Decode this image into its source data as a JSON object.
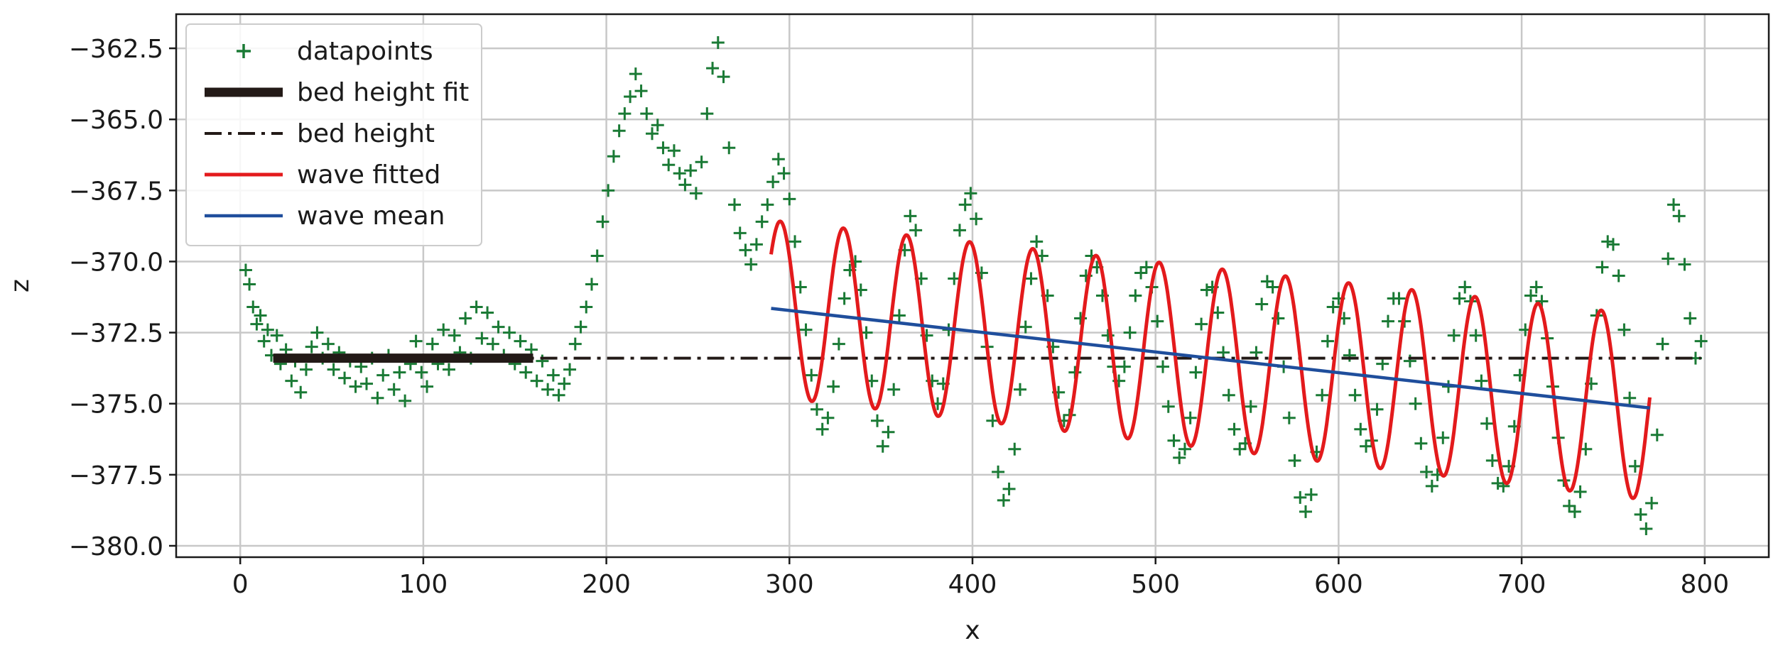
{
  "chart_data": {
    "type": "line",
    "title": "",
    "xlabel": "x",
    "ylabel": "z",
    "xlim": [
      -35,
      835
    ],
    "ylim": [
      -380.4,
      -361.3
    ],
    "xticks": [
      0,
      100,
      200,
      300,
      400,
      500,
      600,
      700,
      800
    ],
    "xtick_labels": [
      "0",
      "100",
      "200",
      "300",
      "400",
      "500",
      "600",
      "700",
      "800"
    ],
    "yticks": [
      -362.5,
      -365.0,
      -367.5,
      -370.0,
      -372.5,
      -375.0,
      -377.5,
      -380.0
    ],
    "ytick_labels": [
      "−362.5",
      "−365.0",
      "−367.5",
      "−370.0",
      "−372.5",
      "−375.0",
      "−377.5",
      "−380.0"
    ],
    "grid": true,
    "legend_position": "top-left",
    "series": [
      {
        "name": "datapoints",
        "kind": "scatter-plus",
        "color": "#1a7a35",
        "points": [
          [
            3,
            -370.3
          ],
          [
            5,
            -370.8
          ],
          [
            7,
            -371.6
          ],
          [
            9,
            -372.2
          ],
          [
            11,
            -371.9
          ],
          [
            13,
            -372.8
          ],
          [
            15,
            -372.4
          ],
          [
            17,
            -373.3
          ],
          [
            20,
            -372.6
          ],
          [
            22,
            -373.6
          ],
          [
            25,
            -373.1
          ],
          [
            28,
            -374.2
          ],
          [
            30,
            -373.5
          ],
          [
            33,
            -374.6
          ],
          [
            36,
            -373.8
          ],
          [
            39,
            -373.0
          ],
          [
            42,
            -372.5
          ],
          [
            45,
            -373.4
          ],
          [
            48,
            -372.9
          ],
          [
            51,
            -373.8
          ],
          [
            54,
            -373.2
          ],
          [
            57,
            -374.1
          ],
          [
            60,
            -373.5
          ],
          [
            63,
            -374.4
          ],
          [
            66,
            -373.7
          ],
          [
            69,
            -374.3
          ],
          [
            72,
            -373.4
          ],
          [
            75,
            -374.8
          ],
          [
            78,
            -374.0
          ],
          [
            81,
            -373.3
          ],
          [
            84,
            -374.5
          ],
          [
            87,
            -373.9
          ],
          [
            90,
            -374.9
          ],
          [
            93,
            -373.6
          ],
          [
            96,
            -372.8
          ],
          [
            99,
            -373.9
          ],
          [
            102,
            -374.4
          ],
          [
            105,
            -372.9
          ],
          [
            108,
            -373.6
          ],
          [
            111,
            -372.4
          ],
          [
            114,
            -373.8
          ],
          [
            117,
            -372.6
          ],
          [
            120,
            -373.2
          ],
          [
            123,
            -372.0
          ],
          [
            126,
            -373.4
          ],
          [
            129,
            -371.6
          ],
          [
            132,
            -372.7
          ],
          [
            135,
            -371.8
          ],
          [
            138,
            -372.9
          ],
          [
            141,
            -372.3
          ],
          [
            144,
            -373.3
          ],
          [
            147,
            -372.5
          ],
          [
            150,
            -373.6
          ],
          [
            153,
            -372.8
          ],
          [
            156,
            -373.9
          ],
          [
            159,
            -373.1
          ],
          [
            162,
            -374.2
          ],
          [
            165,
            -373.5
          ],
          [
            168,
            -374.5
          ],
          [
            171,
            -374.0
          ],
          [
            174,
            -374.7
          ],
          [
            177,
            -374.3
          ],
          [
            180,
            -373.8
          ],
          [
            183,
            -372.9
          ],
          [
            186,
            -372.3
          ],
          [
            189,
            -371.6
          ],
          [
            192,
            -370.8
          ],
          [
            195,
            -369.8
          ],
          [
            198,
            -368.6
          ],
          [
            201,
            -367.5
          ],
          [
            204,
            -366.3
          ],
          [
            207,
            -365.4
          ],
          [
            210,
            -364.8
          ],
          [
            213,
            -364.2
          ],
          [
            216,
            -363.4
          ],
          [
            219,
            -364.0
          ],
          [
            222,
            -364.8
          ],
          [
            225,
            -365.5
          ],
          [
            228,
            -365.2
          ],
          [
            231,
            -366.0
          ],
          [
            234,
            -366.6
          ],
          [
            237,
            -366.1
          ],
          [
            240,
            -366.9
          ],
          [
            243,
            -367.3
          ],
          [
            246,
            -366.8
          ],
          [
            249,
            -367.6
          ],
          [
            252,
            -366.5
          ],
          [
            255,
            -364.8
          ],
          [
            258,
            -363.2
          ],
          [
            261,
            -362.3
          ],
          [
            264,
            -363.5
          ],
          [
            267,
            -366.0
          ],
          [
            270,
            -368.0
          ],
          [
            273,
            -369.0
          ],
          [
            276,
            -369.6
          ],
          [
            279,
            -370.1
          ],
          [
            282,
            -369.4
          ],
          [
            285,
            -368.6
          ],
          [
            288,
            -368.0
          ],
          [
            291,
            -367.2
          ],
          [
            294,
            -366.4
          ],
          [
            297,
            -366.9
          ],
          [
            300,
            -367.8
          ],
          [
            303,
            -369.3
          ],
          [
            306,
            -370.9
          ],
          [
            309,
            -372.4
          ],
          [
            312,
            -374.0
          ],
          [
            315,
            -375.2
          ],
          [
            318,
            -375.9
          ],
          [
            321,
            -375.5
          ],
          [
            324,
            -374.4
          ],
          [
            327,
            -372.9
          ],
          [
            330,
            -371.3
          ],
          [
            333,
            -370.3
          ],
          [
            336,
            -370.0
          ],
          [
            339,
            -371.0
          ],
          [
            342,
            -372.5
          ],
          [
            345,
            -374.2
          ],
          [
            348,
            -375.6
          ],
          [
            351,
            -376.5
          ],
          [
            354,
            -376.0
          ],
          [
            357,
            -374.5
          ],
          [
            360,
            -371.9
          ],
          [
            363,
            -369.6
          ],
          [
            366,
            -368.4
          ],
          [
            369,
            -368.9
          ],
          [
            372,
            -370.6
          ],
          [
            375,
            -372.6
          ],
          [
            378,
            -374.2
          ],
          [
            381,
            -375.0
          ],
          [
            384,
            -374.3
          ],
          [
            387,
            -372.4
          ],
          [
            390,
            -370.6
          ],
          [
            393,
            -368.9
          ],
          [
            396,
            -368.0
          ],
          [
            399,
            -367.6
          ],
          [
            402,
            -368.5
          ],
          [
            405,
            -370.4
          ],
          [
            408,
            -373.0
          ],
          [
            411,
            -375.6
          ],
          [
            414,
            -377.4
          ],
          [
            417,
            -378.4
          ],
          [
            420,
            -378.0
          ],
          [
            423,
            -376.6
          ],
          [
            426,
            -374.5
          ],
          [
            429,
            -372.3
          ],
          [
            432,
            -370.6
          ],
          [
            435,
            -369.3
          ],
          [
            438,
            -369.8
          ],
          [
            441,
            -371.2
          ],
          [
            444,
            -373.0
          ],
          [
            447,
            -374.6
          ],
          [
            450,
            -375.6
          ],
          [
            453,
            -375.4
          ],
          [
            456,
            -373.9
          ],
          [
            459,
            -372.0
          ],
          [
            462,
            -370.5
          ],
          [
            465,
            -369.8
          ],
          [
            468,
            -370.2
          ],
          [
            471,
            -371.2
          ],
          [
            474,
            -372.6
          ],
          [
            477,
            -373.7
          ],
          [
            480,
            -374.2
          ],
          [
            483,
            -373.7
          ],
          [
            486,
            -372.5
          ],
          [
            489,
            -371.2
          ],
          [
            492,
            -370.4
          ],
          [
            495,
            -370.2
          ],
          [
            498,
            -370.9
          ],
          [
            501,
            -372.1
          ],
          [
            504,
            -373.7
          ],
          [
            507,
            -375.1
          ],
          [
            510,
            -376.3
          ],
          [
            513,
            -376.9
          ],
          [
            516,
            -376.6
          ],
          [
            519,
            -375.5
          ],
          [
            522,
            -373.9
          ],
          [
            525,
            -372.2
          ],
          [
            528,
            -371.0
          ],
          [
            531,
            -370.9
          ],
          [
            534,
            -371.8
          ],
          [
            537,
            -373.2
          ],
          [
            540,
            -374.7
          ],
          [
            543,
            -375.9
          ],
          [
            546,
            -376.6
          ],
          [
            549,
            -376.4
          ],
          [
            552,
            -375.1
          ],
          [
            555,
            -373.2
          ],
          [
            558,
            -371.5
          ],
          [
            561,
            -370.7
          ],
          [
            564,
            -370.9
          ],
          [
            567,
            -372.0
          ],
          [
            570,
            -373.7
          ],
          [
            573,
            -375.5
          ],
          [
            576,
            -377.0
          ],
          [
            579,
            -378.3
          ],
          [
            582,
            -378.8
          ],
          [
            585,
            -378.2
          ],
          [
            588,
            -376.7
          ],
          [
            591,
            -374.7
          ],
          [
            594,
            -372.8
          ],
          [
            597,
            -371.6
          ],
          [
            600,
            -371.3
          ],
          [
            603,
            -372.0
          ],
          [
            606,
            -373.3
          ],
          [
            609,
            -374.7
          ],
          [
            612,
            -375.9
          ],
          [
            615,
            -376.5
          ],
          [
            618,
            -376.3
          ],
          [
            621,
            -375.2
          ],
          [
            624,
            -373.6
          ],
          [
            627,
            -372.1
          ],
          [
            630,
            -371.3
          ],
          [
            633,
            -371.3
          ],
          [
            636,
            -372.1
          ],
          [
            639,
            -373.5
          ],
          [
            642,
            -375.0
          ],
          [
            645,
            -376.4
          ],
          [
            648,
            -377.4
          ],
          [
            651,
            -377.9
          ],
          [
            654,
            -377.5
          ],
          [
            657,
            -376.2
          ],
          [
            660,
            -374.4
          ],
          [
            663,
            -372.6
          ],
          [
            666,
            -371.3
          ],
          [
            669,
            -370.9
          ],
          [
            672,
            -371.4
          ],
          [
            675,
            -372.6
          ],
          [
            678,
            -374.2
          ],
          [
            681,
            -375.7
          ],
          [
            684,
            -377.0
          ],
          [
            687,
            -377.8
          ],
          [
            690,
            -377.9
          ],
          [
            693,
            -377.2
          ],
          [
            696,
            -375.8
          ],
          [
            699,
            -374.0
          ],
          [
            702,
            -372.4
          ],
          [
            705,
            -371.2
          ],
          [
            708,
            -370.9
          ],
          [
            711,
            -371.4
          ],
          [
            714,
            -372.7
          ],
          [
            717,
            -374.4
          ],
          [
            720,
            -376.2
          ],
          [
            723,
            -377.7
          ],
          [
            726,
            -378.6
          ],
          [
            729,
            -378.8
          ],
          [
            732,
            -378.1
          ],
          [
            735,
            -376.6
          ],
          [
            738,
            -374.3
          ],
          [
            741,
            -371.9
          ],
          [
            744,
            -370.2
          ],
          [
            747,
            -369.3
          ],
          [
            750,
            -369.4
          ],
          [
            753,
            -370.5
          ],
          [
            756,
            -372.4
          ],
          [
            759,
            -374.8
          ],
          [
            762,
            -377.2
          ],
          [
            765,
            -378.9
          ],
          [
            768,
            -379.4
          ],
          [
            771,
            -378.5
          ],
          [
            774,
            -376.1
          ],
          [
            777,
            -372.9
          ],
          [
            780,
            -369.9
          ],
          [
            783,
            -368.0
          ],
          [
            786,
            -368.4
          ],
          [
            789,
            -370.1
          ],
          [
            792,
            -372.0
          ],
          [
            795,
            -373.4
          ],
          [
            798,
            -372.8
          ]
        ]
      },
      {
        "name": "bed height fit",
        "kind": "line",
        "color": "#231a17",
        "points": [
          [
            18,
            -373.4
          ],
          [
            160,
            -373.4
          ]
        ]
      },
      {
        "name": "bed height",
        "kind": "dashdot",
        "color": "#231a17",
        "points": [
          [
            18,
            -373.4
          ],
          [
            798,
            -373.4
          ]
        ]
      },
      {
        "name": "wave fitted",
        "kind": "line",
        "color": "#e31a1c",
        "x_range": [
          290,
          770
        ],
        "mean_line": [
          [
            290,
            -371.65
          ],
          [
            770,
            -375.15
          ]
        ],
        "amplitude_range": [
          3.1,
          3.25
        ],
        "wavelength": 34.5,
        "peak_x": 295
      },
      {
        "name": "wave mean",
        "kind": "line",
        "color": "#1f4e9c",
        "points": [
          [
            290,
            -371.65
          ],
          [
            770,
            -375.15
          ]
        ]
      }
    ]
  }
}
